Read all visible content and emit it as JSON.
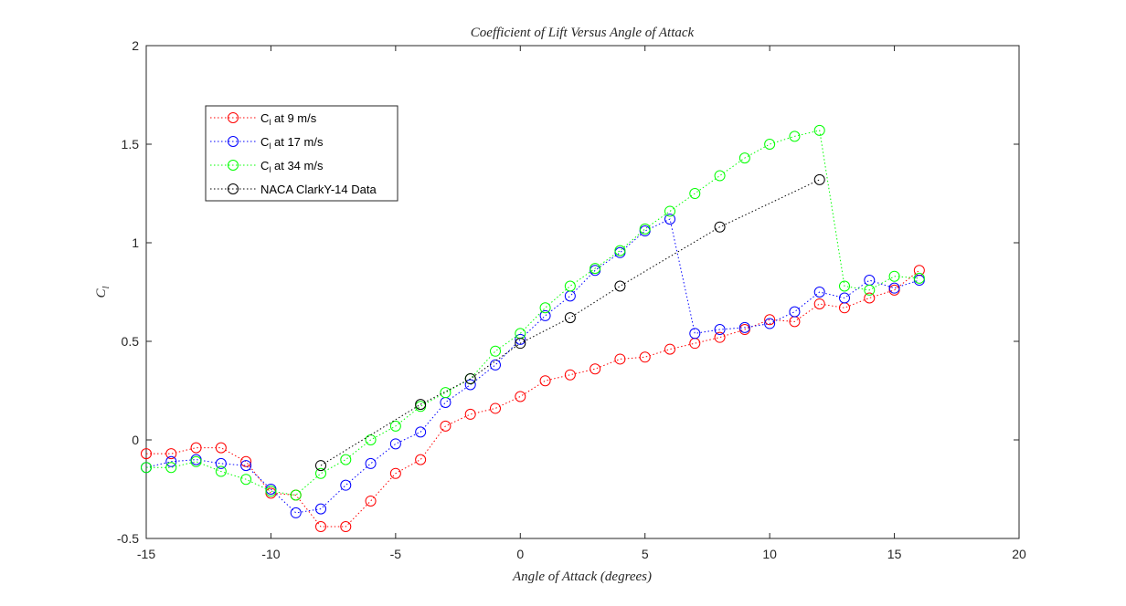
{
  "chart_data": {
    "type": "line",
    "title": "Coefficient of Lift Versus Angle of Attack",
    "xlabel": "Angle of Attack (degrees)",
    "ylabel": "Cl",
    "xlim": [
      -15,
      20
    ],
    "ylim": [
      -0.5,
      2
    ],
    "xticks": [
      "-15",
      "-10",
      "-5",
      "0",
      "5",
      "10",
      "15",
      "20"
    ],
    "yticks": [
      "-0.5",
      "0",
      "0.5",
      "1",
      "1.5",
      "2"
    ],
    "grid": false,
    "legend_position": "top-left",
    "line_style": "dotted",
    "marker": "open-circle",
    "series": [
      {
        "name": "Cl at 9 m/s",
        "legend_main": "C",
        "legend_sub": "l",
        "legend_rest": " at 9 m/s",
        "color": "#ff0000",
        "x": [
          -15,
          -14,
          -13,
          -12,
          -11,
          -10,
          -9,
          -8,
          -7,
          -6,
          -5,
          -4,
          -3,
          -2,
          -1,
          0,
          1,
          2,
          3,
          4,
          5,
          6,
          7,
          8,
          9,
          10,
          11,
          12,
          13,
          14,
          15,
          16
        ],
        "y": [
          -0.07,
          -0.07,
          -0.04,
          -0.04,
          -0.11,
          -0.27,
          -0.28,
          -0.44,
          -0.44,
          -0.31,
          -0.17,
          -0.1,
          0.07,
          0.13,
          0.16,
          0.22,
          0.3,
          0.33,
          0.36,
          0.41,
          0.42,
          0.46,
          0.49,
          0.52,
          0.56,
          0.61,
          0.6,
          0.69,
          0.67,
          0.72,
          0.76,
          0.86
        ]
      },
      {
        "name": "Cl at 17 m/s",
        "legend_main": "C",
        "legend_sub": "l",
        "legend_rest": " at 17 m/s",
        "color": "#0000ff",
        "x": [
          -15,
          -14,
          -13,
          -12,
          -11,
          -10,
          -9,
          -8,
          -7,
          -6,
          -5,
          -4,
          -3,
          -2,
          -1,
          0,
          1,
          2,
          3,
          4,
          5,
          6,
          7,
          8,
          9,
          10,
          11,
          12,
          13,
          14,
          15,
          16
        ],
        "y": [
          -0.14,
          -0.11,
          -0.1,
          -0.12,
          -0.13,
          -0.25,
          -0.37,
          -0.35,
          -0.23,
          -0.12,
          -0.02,
          0.04,
          0.19,
          0.28,
          0.38,
          0.51,
          0.63,
          0.73,
          0.86,
          0.95,
          1.06,
          1.12,
          0.54,
          0.56,
          0.57,
          0.59,
          0.65,
          0.75,
          0.72,
          0.81,
          0.77,
          0.81
        ]
      },
      {
        "name": "Cl at 34 m/s",
        "legend_main": "C",
        "legend_sub": "l",
        "legend_rest": " at 34 m/s",
        "color": "#00ff00",
        "x": [
          -15,
          -14,
          -13,
          -12,
          -11,
          -10,
          -9,
          -8,
          -7,
          -6,
          -5,
          -4,
          -3,
          -2,
          -1,
          0,
          1,
          2,
          3,
          4,
          5,
          6,
          7,
          8,
          9,
          10,
          11,
          12,
          13,
          14,
          15,
          16
        ],
        "y": [
          -0.14,
          -0.14,
          -0.11,
          -0.16,
          -0.2,
          -0.26,
          -0.28,
          -0.17,
          -0.1,
          0.0,
          0.07,
          0.17,
          0.24,
          0.31,
          0.45,
          0.54,
          0.67,
          0.78,
          0.87,
          0.96,
          1.07,
          1.16,
          1.25,
          1.34,
          1.43,
          1.5,
          1.54,
          1.57,
          0.78,
          0.76,
          0.83,
          0.82
        ]
      },
      {
        "name": "NACA ClarkY-14 Data",
        "legend_main": "NACA ClarkY-14 Data",
        "legend_sub": "",
        "legend_rest": "",
        "color": "#000000",
        "x": [
          -8,
          -4,
          -2,
          0,
          2,
          4,
          8,
          12
        ],
        "y": [
          -0.13,
          0.18,
          0.31,
          0.49,
          0.62,
          0.78,
          1.08,
          1.32
        ]
      }
    ]
  }
}
